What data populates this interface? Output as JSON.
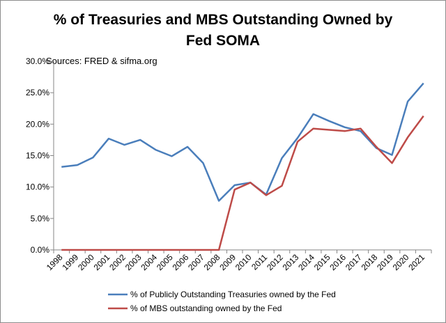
{
  "chart_data": {
    "type": "line",
    "title_lines": [
      "% of Treasuries and MBS Outstanding Owned by",
      "Fed SOMA"
    ],
    "annotation": "Sources: FRED & sifma.org",
    "categories": [
      "1998",
      "1999",
      "2000",
      "2001",
      "2002",
      "2003",
      "2004",
      "2005",
      "2006",
      "2007",
      "2008",
      "2009",
      "2010",
      "2011",
      "2012",
      "2013",
      "2014",
      "2015",
      "2016",
      "2017",
      "2018",
      "2019",
      "2020",
      "2021"
    ],
    "ylim": [
      0,
      30
    ],
    "y_ticks": [
      0,
      5,
      10,
      15,
      20,
      25,
      30
    ],
    "y_tick_labels": [
      "0.0%",
      "5.0%",
      "10.0%",
      "15.0%",
      "20.0%",
      "25.0%",
      "30.0%"
    ],
    "series": [
      {
        "name": "% of Publicly Outstanding Treasuries owned by the Fed",
        "color": "#4a7ebb",
        "values": [
          13.2,
          13.5,
          14.7,
          17.7,
          16.7,
          17.5,
          15.9,
          14.9,
          16.4,
          13.8,
          7.8,
          10.3,
          10.7,
          8.8,
          14.6,
          17.8,
          21.6,
          20.5,
          19.5,
          18.9,
          16.2,
          15.1,
          23.6,
          26.5
        ]
      },
      {
        "name": "% of MBS outstanding owned by the Fed",
        "color": "#be4b48",
        "values": [
          0,
          0,
          0,
          0,
          0,
          0,
          0,
          0,
          0,
          0,
          0,
          9.6,
          10.7,
          8.7,
          10.2,
          17.2,
          19.3,
          19.1,
          18.9,
          19.3,
          16.4,
          13.8,
          17.9,
          21.3
        ]
      }
    ],
    "grid": false,
    "legend_position": "bottom"
  }
}
